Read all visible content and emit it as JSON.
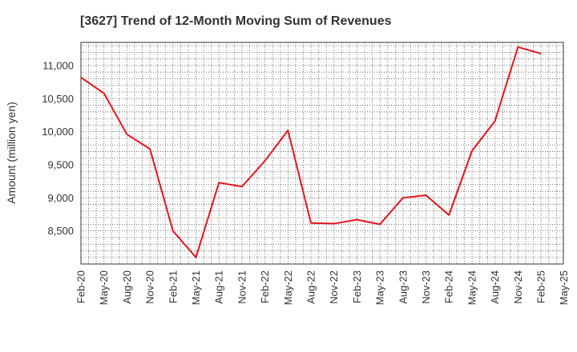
{
  "chart_data": {
    "type": "line",
    "title": "[3627]  Trend of 12-Month Moving Sum of Revenues",
    "xlabel": "",
    "ylabel": "Amount (million yen)",
    "x_tick_labels": [
      "Feb-20",
      "May-20",
      "Aug-20",
      "Nov-20",
      "Feb-21",
      "May-21",
      "Aug-21",
      "Nov-21",
      "Feb-22",
      "May-22",
      "Aug-22",
      "Nov-22",
      "Feb-23",
      "May-23",
      "Aug-23",
      "Nov-23",
      "Feb-24",
      "May-24",
      "Aug-24",
      "Nov-24",
      "Feb-25",
      "May-25"
    ],
    "y_ticks": [
      8500,
      9000,
      9500,
      10000,
      10500,
      11000
    ],
    "y_tick_labels": [
      "8,500",
      "9,000",
      "9,500",
      "10,000",
      "10,500",
      "11,000"
    ],
    "ylim": [
      8000,
      11350
    ],
    "grid": true,
    "series": [
      {
        "color": "#e8141c",
        "x": [
          "Feb-20",
          "May-20",
          "Aug-20",
          "Nov-20",
          "Feb-21",
          "May-21",
          "Aug-21",
          "Nov-21",
          "Feb-22",
          "May-22",
          "Aug-22",
          "Nov-22",
          "Feb-23",
          "May-23",
          "Aug-23",
          "Nov-23",
          "Feb-24",
          "May-24",
          "Aug-24",
          "Nov-24",
          "Feb-25"
        ],
        "values": [
          10820,
          10580,
          9960,
          9740,
          8500,
          8100,
          9230,
          9170,
          9560,
          10020,
          8620,
          8610,
          8670,
          8600,
          9000,
          9040,
          8740,
          9710,
          10160,
          11280,
          11180
        ]
      }
    ]
  }
}
